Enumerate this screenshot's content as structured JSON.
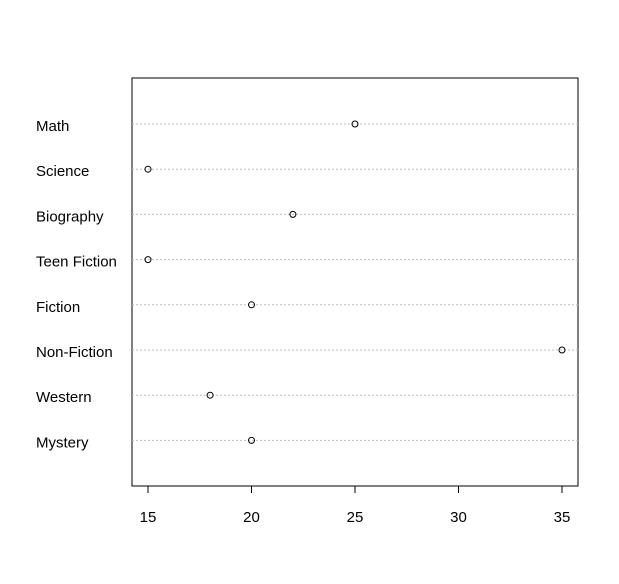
{
  "chart_data": {
    "type": "dotplot",
    "categories": [
      "Math",
      "Science",
      "Biography",
      "Teen Fiction",
      "Fiction",
      "Non-Fiction",
      "Western",
      "Mystery"
    ],
    "values": [
      25,
      15,
      22,
      15,
      20,
      35,
      18,
      20
    ],
    "xlim": [
      14.2,
      35.8
    ],
    "xticks": [
      "15",
      "20",
      "25",
      "30",
      "35"
    ],
    "title": "",
    "xlabel": "",
    "ylabel": "",
    "grid": "dotted horizontal guide lines per category",
    "legend": "none",
    "colors": {
      "point": "#000000",
      "guide": "#bebebe",
      "frame": "#000000"
    }
  }
}
